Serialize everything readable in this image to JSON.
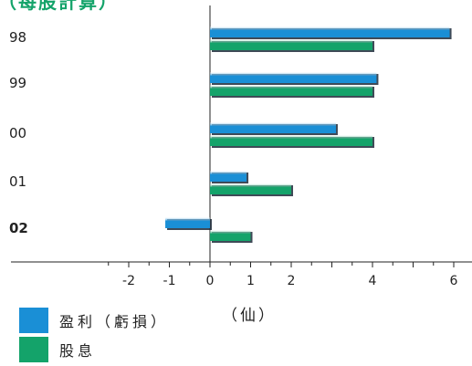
{
  "chart_data": {
    "type": "bar",
    "orientation": "horizontal",
    "title": "（每股計算）",
    "unit_label": "（仙）",
    "categories": [
      "98",
      "99",
      "00",
      "01",
      "02"
    ],
    "highlight_category": "02",
    "series": [
      {
        "name": "盈利（虧損）",
        "color": "#1a8fd6",
        "values": [
          5.9,
          4.1,
          3.1,
          0.9,
          -1.1
        ]
      },
      {
        "name": "股息",
        "color": "#14a36a",
        "values": [
          4.0,
          4.0,
          4.0,
          2.0,
          1.0
        ]
      }
    ],
    "xlim": [
      -2.5,
      6.5
    ],
    "xticks": [
      -2,
      -1,
      0,
      1,
      2,
      4,
      6
    ],
    "grid": false,
    "legend": "bottom-left"
  }
}
